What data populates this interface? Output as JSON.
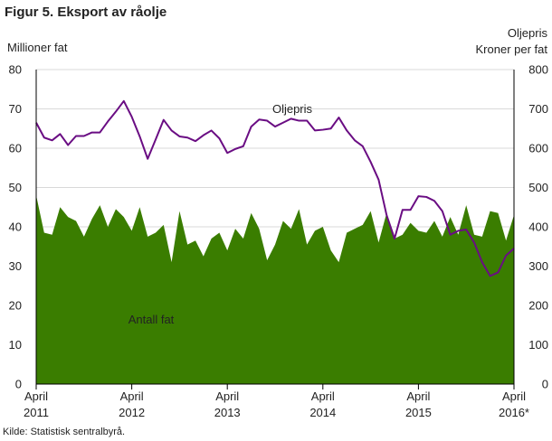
{
  "title": "Figur 5. Eksport av råolje",
  "left_axis_title": "Millioner  fat",
  "right_axis_title_line1": "Oljepris",
  "right_axis_title_line2": "Kroner per fat",
  "source": "Kilde: Statistisk sentralbyrå.",
  "colors": {
    "area": "#3a7d00",
    "line": "#6a0d83",
    "grid": "#d9d9d9",
    "axis": "#000000"
  },
  "chart_data": {
    "type": "area",
    "x_start": "2011-04",
    "x_end": "2016-04",
    "x_ticks": [
      {
        "month": "2011-04",
        "label1": "April",
        "label2": "2011"
      },
      {
        "month": "2012-04",
        "label1": "April",
        "label2": "2012"
      },
      {
        "month": "2013-04",
        "label1": "April",
        "label2": "2013"
      },
      {
        "month": "2014-04",
        "label1": "April",
        "label2": "2014"
      },
      {
        "month": "2015-04",
        "label1": "April",
        "label2": "2015"
      },
      {
        "month": "2016-04",
        "label1": "April",
        "label2": "2016*"
      }
    ],
    "y_left": {
      "label": "Millioner  fat",
      "min": 0,
      "max": 80,
      "ticks": [
        0,
        10,
        20,
        30,
        40,
        50,
        60,
        70,
        80
      ]
    },
    "y_right": {
      "label": "Oljepris Kroner per fat",
      "min": 0,
      "max": 800,
      "ticks": [
        0,
        100,
        200,
        300,
        400,
        500,
        600,
        700,
        800
      ]
    },
    "grid": true,
    "series": [
      {
        "name": "Antall fat",
        "axis": "left",
        "type": "area",
        "values": [
          48,
          38.5,
          38,
          45,
          42.5,
          41.5,
          37.5,
          42,
          45.5,
          40,
          44.5,
          42.5,
          39,
          45,
          37.5,
          38.5,
          40.5,
          31,
          44,
          35.5,
          36.5,
          32.5,
          37,
          38.5,
          34,
          39.5,
          37,
          43.5,
          39.5,
          31.5,
          35.5,
          41.5,
          39.5,
          44.5,
          35.5,
          39,
          40,
          34,
          31,
          38.5,
          39.5,
          40.5,
          44,
          36,
          43.5,
          37,
          38,
          41,
          39,
          38.5,
          41.5,
          37.5,
          42.5,
          38,
          45.5,
          38,
          37.5,
          44,
          43.5,
          36.5,
          43
        ]
      },
      {
        "name": "Oljepris",
        "axis": "right",
        "type": "line",
        "values": [
          665,
          627,
          620,
          636,
          608,
          631,
          631,
          640,
          640,
          668,
          693,
          720,
          680,
          630,
          573,
          622,
          672,
          645,
          630,
          627,
          618,
          633,
          645,
          625,
          588,
          598,
          605,
          655,
          673,
          670,
          655,
          665,
          675,
          670,
          670,
          645,
          647,
          650,
          678,
          645,
          620,
          605,
          565,
          520,
          430,
          370,
          443,
          443,
          478,
          476,
          466,
          440,
          380,
          390,
          393,
          360,
          310,
          275,
          284,
          327,
          345
        ]
      }
    ],
    "annotations": [
      {
        "text": "Oljepris",
        "series": "Oljepris"
      },
      {
        "text": "Antall fat",
        "series": "Antall fat"
      }
    ]
  }
}
